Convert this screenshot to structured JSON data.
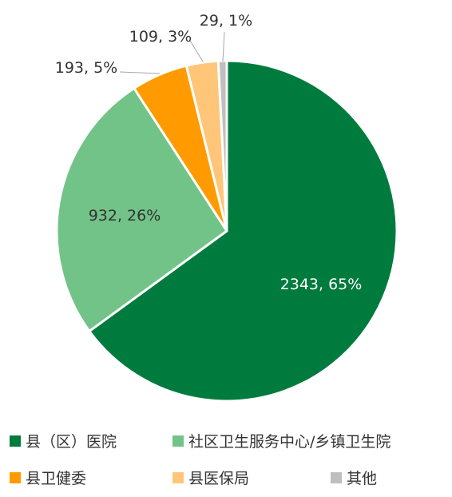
{
  "chart_data": {
    "type": "pie",
    "title": "",
    "slices": [
      {
        "name": "县（区）医院",
        "value": 2343,
        "percent": "65%",
        "label": "2343, 65%",
        "color": "#007b3e",
        "label_color": "#ffffff"
      },
      {
        "name": "社区卫生服务中心/乡镇卫生院",
        "value": 932,
        "percent": "26%",
        "label": "932, 26%",
        "color": "#72c387",
        "label_color": "#333333"
      },
      {
        "name": "县卫健委",
        "value": 193,
        "percent": "5%",
        "label": "193, 5%",
        "color": "#ff9b00",
        "label_color": "#333333"
      },
      {
        "name": "县医保局",
        "value": 109,
        "percent": "3%",
        "label": "109, 3%",
        "color": "#ffc67a",
        "label_color": "#333333"
      },
      {
        "name": "其他",
        "value": 29,
        "percent": "1%",
        "label": "29, 1%",
        "color": "#bfbfbf",
        "label_color": "#333333"
      }
    ],
    "legend_position": "bottom"
  }
}
